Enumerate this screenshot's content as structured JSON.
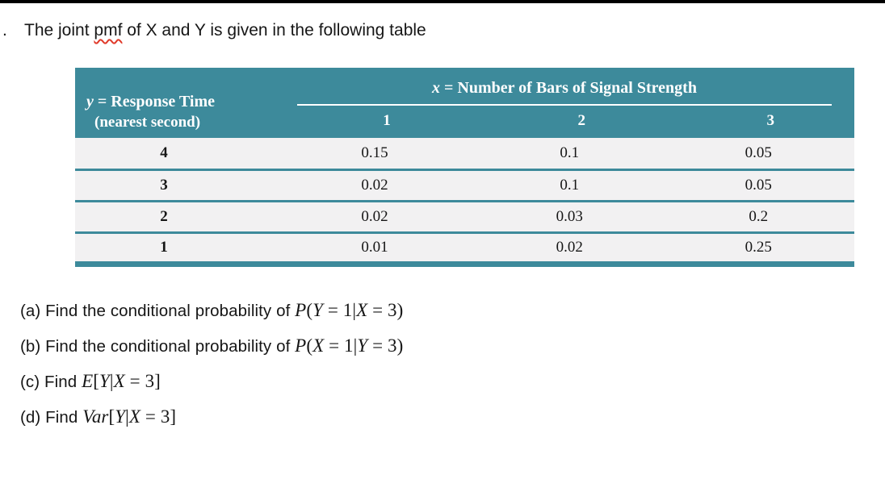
{
  "page": {
    "list_marker": ".",
    "title_pre": "The joint ",
    "misspelled_word": "pmf",
    "title_post": " of X and Y is given in the following table"
  },
  "table": {
    "y_header": {
      "var": "y",
      "rest": " = Response Time",
      "sub": "(nearest second)"
    },
    "x_header": {
      "var": "x",
      "rest": " = Number of Bars of Signal Strength"
    },
    "columns": [
      "1",
      "2",
      "3"
    ],
    "rows": [
      {
        "y": "4",
        "values": [
          "0.15",
          "0.1",
          "0.05"
        ]
      },
      {
        "y": "3",
        "values": [
          "0.02",
          "0.1",
          "0.05"
        ]
      },
      {
        "y": "2",
        "values": [
          "0.02",
          "0.03",
          "0.2"
        ]
      },
      {
        "y": "1",
        "values": [
          "0.01",
          "0.02",
          "0.25"
        ]
      }
    ]
  },
  "questions": [
    {
      "label": "(a)",
      "prefix": " Find the conditional probability of ",
      "math": "P(Y = 1|X = 3)"
    },
    {
      "label": "(b)",
      "prefix": " Find the conditional probability of ",
      "math": "P(X = 1|Y = 3)"
    },
    {
      "label": "(c)",
      "prefix": " Find ",
      "math": "E[Y|X = 3]"
    },
    {
      "label": "(d)",
      "prefix": " Find ",
      "math": "Var[Y|X = 3]"
    }
  ],
  "colors": {
    "table_header": "#3d8a9b",
    "row_bg": "#f2f1f2",
    "squiggle": "#e03a2a",
    "header_text": "#ffffff"
  }
}
